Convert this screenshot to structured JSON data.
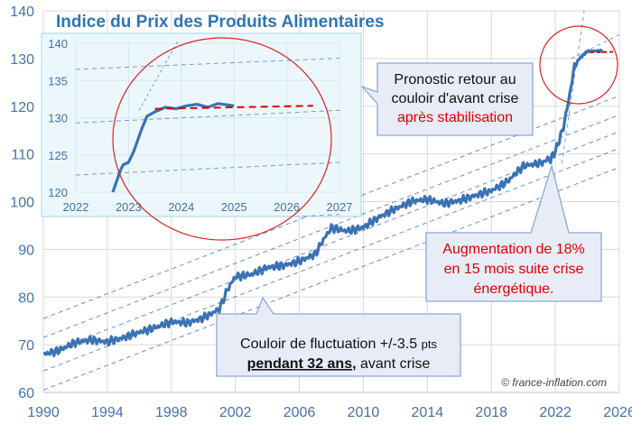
{
  "chart_data": [
    {
      "type": "line",
      "title": "Indice du Prix des Produits Alimentaires",
      "xlabel": "",
      "ylabel": "",
      "xlim": [
        1990,
        2026
      ],
      "ylim": [
        60,
        140
      ],
      "x_ticks": [
        "1990",
        "1994",
        "1998",
        "2002",
        "2006",
        "2010",
        "2014",
        "2018",
        "2022",
        "2026"
      ],
      "y_ticks": [
        "60",
        "70",
        "80",
        "90",
        "100",
        "110",
        "120",
        "130",
        "140"
      ],
      "grid": true,
      "series": [
        {
          "values": [
            [
              1990.0,
              68.0
            ],
            [
              1991.0,
              68.8
            ],
            [
              1992.0,
              70.5
            ],
            [
              1993.0,
              71.0
            ],
            [
              1994.0,
              70.6
            ],
            [
              1995.0,
              71.5
            ],
            [
              1996.0,
              72.6
            ],
            [
              1997.0,
              73.6
            ],
            [
              1998.0,
              74.8
            ],
            [
              1999.0,
              74.6
            ],
            [
              2000.0,
              75.6
            ],
            [
              2001.0,
              77.5
            ],
            [
              2001.5,
              81.5
            ],
            [
              2002.0,
              84.3
            ],
            [
              2003.0,
              84.7
            ],
            [
              2004.0,
              86.2
            ],
            [
              2005.0,
              86.6
            ],
            [
              2006.0,
              87.5
            ],
            [
              2007.0,
              89.0
            ],
            [
              2007.5,
              92.0
            ],
            [
              2008.0,
              94.5
            ],
            [
              2009.0,
              93.8
            ],
            [
              2010.0,
              94.6
            ],
            [
              2011.0,
              96.8
            ],
            [
              2012.0,
              98.5
            ],
            [
              2013.0,
              100.0
            ],
            [
              2014.0,
              100.5
            ],
            [
              2015.0,
              99.6
            ],
            [
              2016.0,
              100.2
            ],
            [
              2017.0,
              101.3
            ],
            [
              2018.0,
              102.3
            ],
            [
              2019.0,
              104.2
            ],
            [
              2020.0,
              107.5
            ],
            [
              2021.0,
              108.0
            ],
            [
              2021.7,
              109.0
            ],
            [
              2022.0,
              110.5
            ],
            [
              2022.5,
              115.5
            ],
            [
              2022.9,
              122.5
            ],
            [
              2023.2,
              128.5
            ],
            [
              2023.5,
              130.0
            ],
            [
              2024.0,
              131.5
            ],
            [
              2024.5,
              131.6
            ],
            [
              2025.0,
              131.6
            ]
          ]
        }
      ],
      "corridor_note": "Couloir de fluctuation +/-3.5 pts pendant 32 ans, avant crise"
    },
    {
      "type": "line",
      "xlim": [
        2022,
        2027
      ],
      "ylim": [
        120,
        140
      ],
      "x_ticks": [
        "2022",
        "2023",
        "2024",
        "2025",
        "2026",
        "2027"
      ],
      "y_ticks": [
        "120",
        "125",
        "130",
        "135",
        "140"
      ],
      "series": [
        {
          "values": [
            [
              2022.7,
              120.0
            ],
            [
              2022.85,
              123.0
            ],
            [
              2022.9,
              123.7
            ],
            [
              2023.0,
              124.0
            ],
            [
              2023.1,
              125.5
            ],
            [
              2023.25,
              128.5
            ],
            [
              2023.35,
              130.2
            ],
            [
              2023.5,
              130.8
            ],
            [
              2023.7,
              131.4
            ],
            [
              2023.9,
              131.2
            ],
            [
              2024.1,
              131.6
            ],
            [
              2024.3,
              131.8
            ],
            [
              2024.5,
              131.4
            ],
            [
              2024.7,
              131.9
            ],
            [
              2024.9,
              131.7
            ],
            [
              2025.0,
              131.6
            ]
          ]
        },
        {
          "values": [
            [
              2023.5,
              131.2
            ],
            [
              2026.5,
              131.6
            ]
          ]
        }
      ]
    }
  ],
  "annotations": {
    "forecast": {
      "line1": "Pronostic retour au",
      "line2": "couloir d'avant crise",
      "line3": "après stabilisation"
    },
    "increase": {
      "line1": "Augmentation de 18%",
      "line2": "en 15 mois suite crise",
      "line3": "énergétique."
    },
    "corridor": {
      "prefix": "Couloir de fluctuation +/-3.5",
      "unit": "pts",
      "bold": "pendant 32 ans,",
      "suffix": "avant crise"
    },
    "credit": "© france-inflation.com"
  },
  "colors": {
    "line": "#3a72b4",
    "title": "#2e75b6",
    "tick": "#4472a8",
    "grid": "#d9d9d9",
    "corridor": "#4472c4",
    "circle": "#e02020",
    "forecast": "#e00000",
    "inset_bg": "#ecf7fb",
    "inset_border": "#9fd4ea",
    "callout_bg": "#e8ecf6",
    "callout_border": "#8aa9d6"
  }
}
